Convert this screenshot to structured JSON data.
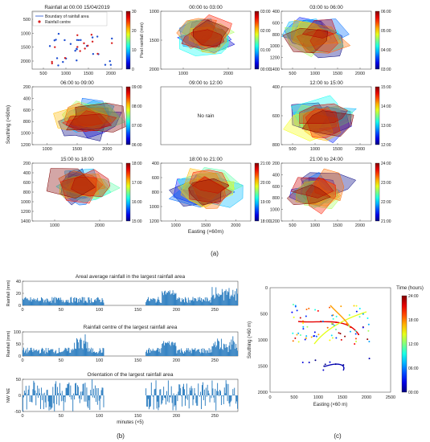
{
  "figure": {
    "label_a": "(a)",
    "label_b": "(b)",
    "label_c": "(c)"
  },
  "colors": {
    "blue": "#1f4fd1",
    "red": "#d81f1f",
    "bar": "#2f7fc1",
    "navy": "#0a1a6e"
  },
  "chart_data": [
    {
      "type": "scatter",
      "panel": "a-first",
      "title": "Rainfall at 00:00 15/04/2019",
      "legend": [
        "Boundary of rainfall area",
        "Rainfall centre"
      ],
      "colorbar_label": "Pixel rainfall (mm)",
      "colorbar_ticks": [
        "30",
        "20",
        "10",
        "0"
      ],
      "xticks": [
        "500",
        "1000",
        "1500",
        "2000"
      ],
      "yticks": [
        "500",
        "1000",
        "1500",
        "2000"
      ]
    },
    {
      "type": "area",
      "panel": "a-grid",
      "ylabel": "Southing (×60m)",
      "xlabel": "Easting (×60m)",
      "cells": [
        {
          "title": "00:00 to 03:00",
          "xticks": [
            "1000",
            "2000"
          ],
          "yticks": [
            "1000",
            "1500",
            "2000"
          ],
          "cbar": [
            "03:00",
            "02:00",
            "01:00",
            "00:00"
          ],
          "norain": ""
        },
        {
          "title": "03:00 to 06:00",
          "xticks": [
            "500",
            "1000",
            "1500",
            "2000"
          ],
          "yticks": [
            "400",
            "600",
            "800",
            "1000",
            "1200",
            "1400"
          ],
          "cbar": [
            "06:00",
            "05:00",
            "04:00",
            "03:00"
          ],
          "norain": ""
        },
        {
          "title": "06:00 to 09:00",
          "xticks": [
            "1000",
            "1500",
            "2000"
          ],
          "yticks": [
            "200",
            "400",
            "600",
            "800",
            "1000",
            "1200"
          ],
          "cbar": [
            "09:00",
            "08:00",
            "07:00",
            "06:00"
          ],
          "norain": ""
        },
        {
          "title": "09:00 to 12:00",
          "xticks": [],
          "yticks": [],
          "cbar": [],
          "norain": "No rain"
        },
        {
          "title": "12:00 to 15:00",
          "xticks": [
            "500",
            "1000",
            "1500",
            "2000"
          ],
          "yticks": [
            "400",
            "600",
            "800"
          ],
          "cbar": [
            "15:00",
            "14:00",
            "13:00",
            "12:00"
          ],
          "norain": ""
        },
        {
          "title": "15:00 to 18:00",
          "xticks": [
            "1000",
            "2000"
          ],
          "yticks": [
            "200",
            "400",
            "600",
            "800",
            "1000",
            "1200",
            "1400"
          ],
          "cbar": [
            "18:00",
            "17:00",
            "16:00",
            "15:00"
          ],
          "norain": ""
        },
        {
          "title": "18:00 to 21:00",
          "xticks": [
            "1000",
            "1500",
            "2000"
          ],
          "yticks": [
            "400",
            "600",
            "800",
            "1000",
            "1200"
          ],
          "cbar": [
            "21:00",
            "20:00",
            "19:00",
            "18:00"
          ],
          "norain": ""
        },
        {
          "title": "21:00 to 24:00",
          "xticks": [
            "500",
            "1000",
            "1500",
            "2000"
          ],
          "yticks": [
            "200",
            "400",
            "600",
            "800",
            "1000",
            "1200"
          ],
          "cbar": [
            "24:00",
            "23:00",
            "22:00",
            "21:00"
          ],
          "norain": ""
        }
      ]
    },
    {
      "type": "bar",
      "panel": "b",
      "xlabel": "minutes (×5)",
      "xticks": [
        "0",
        "50",
        "100",
        "150",
        "200",
        "250"
      ],
      "subplots": [
        {
          "title": "Areal average rainfall in the largest rainfall area",
          "ylabel": "Rainfall (mm)",
          "yticks": [
            "40",
            "20",
            "0"
          ]
        },
        {
          "title": "Rainfall centre of the largest rainfall area",
          "ylabel": "Rainfall (mm)",
          "yticks": [
            "100",
            "50",
            "0"
          ]
        },
        {
          "title": "Orientation of the largest rainfall area",
          "ylabel": "NW   NE",
          "yticks": [
            "50",
            "0",
            "-50"
          ]
        }
      ]
    },
    {
      "type": "scatter",
      "panel": "c",
      "xlabel": "Easting (×60 m)",
      "ylabel": "Southing (×60 m)",
      "xticks": [
        "0",
        "500",
        "1000",
        "1500",
        "2000",
        "2500"
      ],
      "yticks": [
        "0",
        "500",
        "1000",
        "1500",
        "2000"
      ],
      "colorbar_title": "Time (hours)",
      "colorbar_ticks": [
        "24:00",
        "18:00",
        "12:00",
        "06:00",
        "00:00"
      ]
    }
  ]
}
